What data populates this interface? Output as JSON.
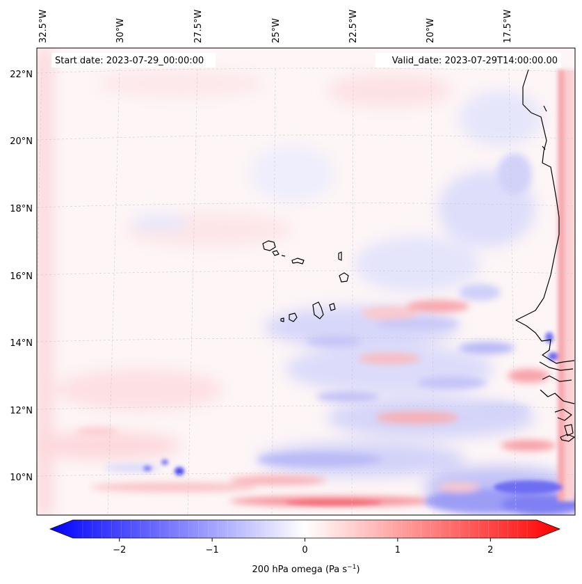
{
  "map": {
    "top_labels": [
      "32.5°W",
      "30°W",
      "27.5°W",
      "25°W",
      "22.5°W",
      "20°W",
      "17.5°W"
    ],
    "left_labels": [
      "22°N",
      "20°N",
      "18°N",
      "16°N",
      "14°N",
      "12°N",
      "10°N"
    ],
    "start_date": "Start date: 2023-07-29_00:00:00",
    "valid_date": "Valid_date: 2023-07-29T14:00:00.00"
  },
  "colorbar": {
    "ticks": [
      "−2",
      "−1",
      "0",
      "1",
      "2"
    ],
    "tick_values": [
      -2,
      -1,
      0,
      1,
      2
    ],
    "range": [
      -2.5,
      2.5
    ],
    "label_main": "200 hPa omega (Pa s",
    "label_sup": "−1",
    "label_close": ")"
  },
  "colors": {
    "negative": "#0000ff",
    "zero": "#ffffff",
    "positive": "#ff0000",
    "coast": "#000000"
  }
}
